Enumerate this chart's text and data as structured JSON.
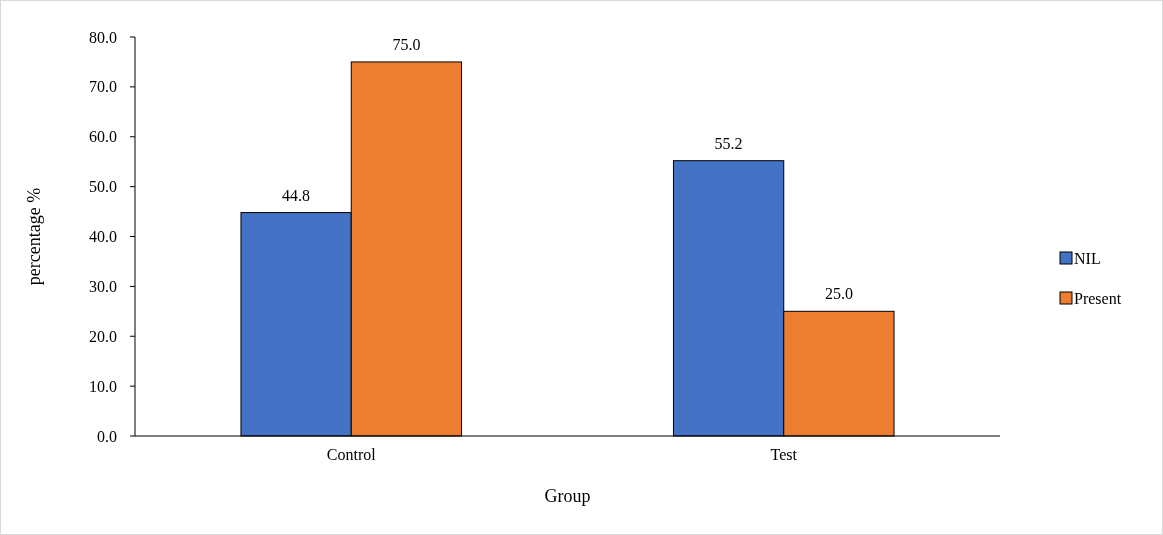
{
  "chart_data": {
    "type": "bar",
    "xlabel": "Group",
    "ylabel": "percentage %",
    "categories": [
      "Control",
      "Test"
    ],
    "series": [
      {
        "name": "NIL",
        "color": "#4472c4",
        "values": [
          44.8,
          55.2
        ],
        "value_labels": [
          "44.8",
          "55.2"
        ]
      },
      {
        "name": "Present",
        "color": "#ed7d31",
        "values": [
          75.0,
          25.0
        ],
        "value_labels": [
          "75.0",
          "25.0"
        ]
      }
    ],
    "ylim": [
      0,
      80
    ],
    "yticks": [
      {
        "value": 0,
        "label": "0.0"
      },
      {
        "value": 10,
        "label": "10.0"
      },
      {
        "value": 20,
        "label": "20.0"
      },
      {
        "value": 30,
        "label": "30.0"
      },
      {
        "value": 40,
        "label": "40.0"
      },
      {
        "value": 50,
        "label": "50.0"
      },
      {
        "value": 60,
        "label": "60.0"
      },
      {
        "value": 70,
        "label": "70.0"
      },
      {
        "value": 80,
        "label": "80.0"
      }
    ],
    "grid": false,
    "legend": "right"
  }
}
